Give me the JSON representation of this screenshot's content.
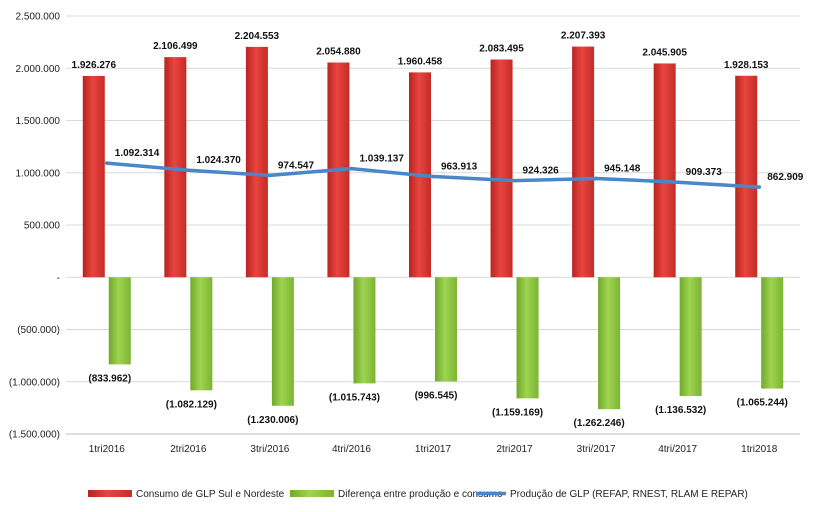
{
  "chart_data": {
    "type": "bar",
    "categories": [
      "1tri2016",
      "2tri2016",
      "3tri/2016",
      "4tri/2016",
      "1tri2017",
      "2tri2017",
      "3tri/2017",
      "4tri/2017",
      "1tri2018"
    ],
    "ylim": [
      -1500000,
      2500000
    ],
    "y_ticks": [
      -1500000,
      -1000000,
      -500000,
      0,
      500000,
      1000000,
      1500000,
      2000000,
      2500000
    ],
    "y_tick_labels": [
      "(1.500.000)",
      "(1.000.000)",
      "(500.000)",
      "-",
      "500.000",
      "1.000.000",
      "1.500.000",
      "2.000.000",
      "2.500.000"
    ],
    "grid": true,
    "legend_position": "bottom",
    "series": [
      {
        "name": "Consumo de GLP Sul e Nordeste",
        "type": "bar",
        "color": "#d93a33",
        "values": [
          1926276,
          2106499,
          2204553,
          2054880,
          1960458,
          2083495,
          2207393,
          2045905,
          1928153
        ],
        "labels": [
          "1.926.276",
          "2.106.499",
          "2.204.553",
          "2.054.880",
          "1.960.458",
          "2.083.495",
          "2.207.393",
          "2.045.905",
          "1.928.153"
        ]
      },
      {
        "name": "Diferença entre produção e consumo",
        "type": "bar",
        "color": "#8cc63f",
        "values": [
          -833962,
          -1082129,
          -1230006,
          -1015743,
          -996545,
          -1159169,
          -1262246,
          -1136532,
          -1065244
        ],
        "labels": [
          "(833.962)",
          "(1.082.129)",
          "(1.230.006)",
          "(1.015.743)",
          "(996.545)",
          "(1.159.169)",
          "(1.262.246)",
          "(1.136.532)",
          "(1.065.244)"
        ]
      },
      {
        "name": "Produção de GLP (REFAP, RNEST, RLAM E REPAR)",
        "type": "line",
        "color": "#4a86c8",
        "values": [
          1092314,
          1024370,
          974547,
          1039137,
          963913,
          924326,
          945148,
          909373,
          862909
        ],
        "labels": [
          "1.092.314",
          "1.024.370",
          "974.547",
          "1.039.137",
          "963.913",
          "924.326",
          "945.148",
          "909.373",
          "862.909"
        ]
      }
    ]
  }
}
